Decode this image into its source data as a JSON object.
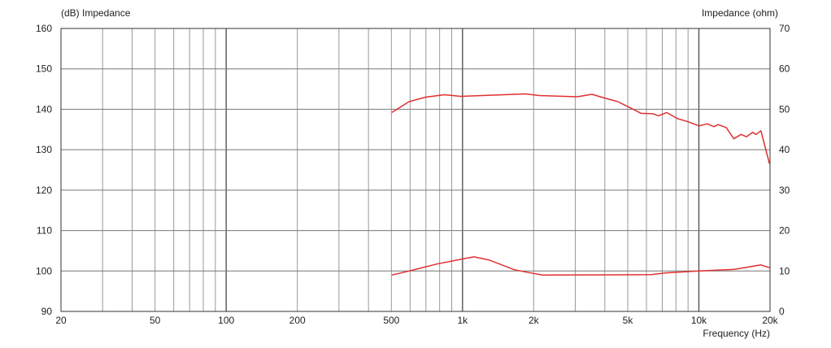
{
  "chart_data": {
    "type": "line",
    "ylabel_left": "(dB)  Impedance",
    "ylabel_right": "Impedance (ohm)",
    "xlabel": "Frequency  (Hz)",
    "x_scale": "log",
    "xlim": [
      20,
      20000
    ],
    "ylim_left": [
      90,
      160
    ],
    "ylim_right": [
      0,
      70
    ],
    "grid": true,
    "x_ticks": [
      {
        "v": 20,
        "l": "20"
      },
      {
        "v": 50,
        "l": "50"
      },
      {
        "v": 100,
        "l": "100"
      },
      {
        "v": 200,
        "l": "200"
      },
      {
        "v": 500,
        "l": "500"
      },
      {
        "v": 1000,
        "l": "1k"
      },
      {
        "v": 2000,
        "l": "2k"
      },
      {
        "v": 5000,
        "l": "5k"
      },
      {
        "v": 10000,
        "l": "10k"
      },
      {
        "v": 20000,
        "l": "20k"
      }
    ],
    "y_ticks_left": [
      90,
      100,
      110,
      120,
      130,
      140,
      150,
      160
    ],
    "y_ticks_right": [
      0,
      10,
      20,
      30,
      40,
      50,
      60,
      70
    ],
    "line_color": "#e03030",
    "series": [
      {
        "x": [
          502,
          594,
          697,
          839,
          982,
          1852,
          2109,
          3057,
          3535,
          3981,
          4540,
          5320,
          5690,
          6400,
          6750,
          7310,
          8110,
          9020,
          10000,
          10860,
          11590,
          12060,
          13050,
          14060,
          15100,
          15900,
          16900,
          17450,
          18300,
          19900
        ],
        "y": [
          139.2,
          141.9,
          143.0,
          143.6,
          143.2,
          143.8,
          143.4,
          143.1,
          143.7,
          142.8,
          141.9,
          139.9,
          139.0,
          138.9,
          138.4,
          139.2,
          137.7,
          136.9,
          135.9,
          136.4,
          135.7,
          136.2,
          135.5,
          132.7,
          133.8,
          133.2,
          134.3,
          133.8,
          134.7,
          126.5
        ]
      },
      {
        "x": [
          502,
          594,
          776,
          1005,
          1117,
          1300,
          1660,
          2000,
          2180,
          6300,
          7170,
          10000,
          14150,
          18300,
          19900
        ],
        "y": [
          99.0,
          100.0,
          101.7,
          103.0,
          103.5,
          102.7,
          100.3,
          99.4,
          99.0,
          99.1,
          99.5,
          100.0,
          100.4,
          101.5,
          100.8
        ]
      }
    ]
  }
}
